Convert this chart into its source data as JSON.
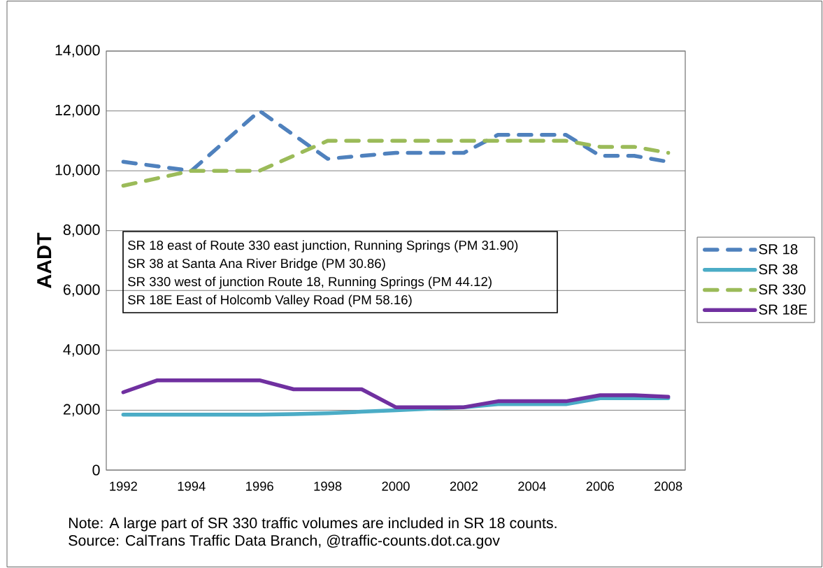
{
  "chart_data": {
    "type": "line",
    "ylabel": "AADT",
    "categories": [
      "1992",
      null,
      "1994",
      null,
      "1996",
      null,
      "1998",
      null,
      "2000",
      null,
      "2002",
      null,
      "2004",
      null,
      "2006",
      null,
      "2008"
    ],
    "series": [
      {
        "name": "SR 18",
        "color": "#4f81bd",
        "line_style": "dashed",
        "values": [
          10300,
          10150,
          10000,
          11000,
          12000,
          11200,
          10400,
          10500,
          10600,
          10600,
          10600,
          11200,
          11200,
          11200,
          10500,
          10500,
          10300
        ]
      },
      {
        "name": "SR 38",
        "color": "#4bacc6",
        "line_style": "solid",
        "values": [
          1850,
          1850,
          1850,
          1850,
          1850,
          1870,
          1900,
          1950,
          2000,
          2050,
          2100,
          2200,
          2200,
          2200,
          2400,
          2400,
          2400
        ]
      },
      {
        "name": "SR 330",
        "color": "#9bbb59",
        "line_style": "dashed",
        "values": [
          9500,
          9750,
          10000,
          10000,
          10000,
          10500,
          11000,
          11000,
          11000,
          11000,
          11000,
          11000,
          11000,
          11000,
          10800,
          10800,
          10600
        ]
      },
      {
        "name": "SR 18E",
        "color": "#7030a0",
        "line_style": "solid",
        "values": [
          2600,
          3000,
          3000,
          3000,
          3000,
          2700,
          2700,
          2700,
          2100,
          2100,
          2100,
          2300,
          2300,
          2300,
          2500,
          2500,
          2450
        ]
      }
    ],
    "ylim": [
      0,
      14000
    ],
    "yticks": [
      0,
      {
        "value": 2000,
        "label": "2,000"
      },
      {
        "value": 4000,
        "label": "4,000"
      },
      {
        "value": 6000,
        "label": "6,000"
      },
      {
        "value": 8000,
        "label": "8,000"
      },
      {
        "value": 10000,
        "label": "10,000"
      },
      {
        "value": 12000,
        "label": "12,000"
      },
      {
        "value": 14000,
        "label": "14,000"
      }
    ],
    "grid": "y",
    "legend": "right",
    "marker": "none",
    "annotations": [
      "SR 18 east of Route 330 east junction, Running Springs (PM 31.90)",
      "SR 38 at Santa Ana River Bridge (PM 30.86)",
      "SR 330 west of junction Route 18, Running Springs (PM 44.12)",
      "SR 18E East of Holcomb Valley Road (PM 58.16)",
      "Note:  A large part of SR 330 traffic volumes are included in SR 18 counts.",
      "Source:  CalTrans Traffic Data Branch, @traffic-counts.dot.ca.gov"
    ]
  }
}
